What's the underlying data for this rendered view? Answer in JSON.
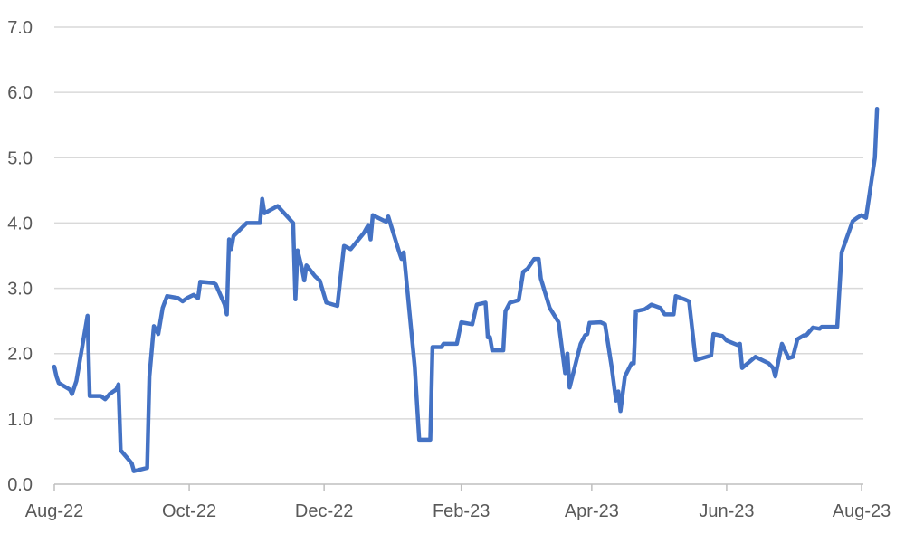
{
  "chart_data": {
    "type": "line",
    "title": "",
    "xlabel": "",
    "ylabel": "",
    "ylim": [
      0,
      7
    ],
    "yticks": [
      "0.0",
      "1.0",
      "2.0",
      "3.0",
      "4.0",
      "5.0",
      "6.0",
      "7.0"
    ],
    "xlim": [
      "2022-08-01",
      "2023-08-01"
    ],
    "xticks": [
      {
        "date": "2022-08-01",
        "label": "Aug-22"
      },
      {
        "date": "2022-10-01",
        "label": "Oct-22"
      },
      {
        "date": "2022-12-01",
        "label": "Dec-22"
      },
      {
        "date": "2023-02-01",
        "label": "Feb-23"
      },
      {
        "date": "2023-04-01",
        "label": "Apr-23"
      },
      {
        "date": "2023-06-01",
        "label": "Jun-23"
      },
      {
        "date": "2023-08-01",
        "label": "Aug-23"
      }
    ],
    "grid": true,
    "legend": "none",
    "series": [
      {
        "color": "#4472c4",
        "points": [
          [
            "2022-08-01",
            1.8
          ],
          [
            "2022-08-02",
            1.65
          ],
          [
            "2022-08-03",
            1.55
          ],
          [
            "2022-08-08",
            1.45
          ],
          [
            "2022-08-09",
            1.38
          ],
          [
            "2022-08-11",
            1.58
          ],
          [
            "2022-08-16",
            2.58
          ],
          [
            "2022-08-17",
            1.35
          ],
          [
            "2022-08-22",
            1.35
          ],
          [
            "2022-08-24",
            1.3
          ],
          [
            "2022-08-26",
            1.38
          ],
          [
            "2022-08-29",
            1.45
          ],
          [
            "2022-08-30",
            1.53
          ],
          [
            "2022-08-31",
            0.52
          ],
          [
            "2022-09-05",
            0.32
          ],
          [
            "2022-09-06",
            0.2
          ],
          [
            "2022-09-12",
            0.25
          ],
          [
            "2022-09-13",
            1.65
          ],
          [
            "2022-09-15",
            2.42
          ],
          [
            "2022-09-17",
            2.3
          ],
          [
            "2022-09-19",
            2.7
          ],
          [
            "2022-09-21",
            2.88
          ],
          [
            "2022-09-26",
            2.85
          ],
          [
            "2022-09-28",
            2.8
          ],
          [
            "2022-09-30",
            2.85
          ],
          [
            "2022-10-03",
            2.9
          ],
          [
            "2022-10-05",
            2.85
          ],
          [
            "2022-10-06",
            3.1
          ],
          [
            "2022-10-12",
            3.08
          ],
          [
            "2022-10-13",
            3.06
          ],
          [
            "2022-10-17",
            2.75
          ],
          [
            "2022-10-18",
            2.6
          ],
          [
            "2022-10-19",
            3.75
          ],
          [
            "2022-10-20",
            3.6
          ],
          [
            "2022-10-21",
            3.8
          ],
          [
            "2022-10-24",
            3.9
          ],
          [
            "2022-10-27",
            4.0
          ],
          [
            "2022-11-02",
            4.0
          ],
          [
            "2022-11-03",
            4.37
          ],
          [
            "2022-11-04",
            4.15
          ],
          [
            "2022-11-10",
            4.26
          ],
          [
            "2022-11-17",
            4.0
          ],
          [
            "2022-11-18",
            2.83
          ],
          [
            "2022-11-19",
            3.58
          ],
          [
            "2022-11-21",
            3.3
          ],
          [
            "2022-11-22",
            3.12
          ],
          [
            "2022-11-23",
            3.35
          ],
          [
            "2022-11-27",
            3.18
          ],
          [
            "2022-11-29",
            3.12
          ],
          [
            "2022-12-02",
            2.78
          ],
          [
            "2022-12-07",
            2.73
          ],
          [
            "2022-12-10",
            3.65
          ],
          [
            "2022-12-13",
            3.6
          ],
          [
            "2022-12-19",
            3.85
          ],
          [
            "2022-12-21",
            3.97
          ],
          [
            "2022-12-22",
            3.75
          ],
          [
            "2022-12-23",
            4.12
          ],
          [
            "2022-12-29",
            4.02
          ],
          [
            "2022-12-30",
            4.1
          ],
          [
            "2023-01-04",
            3.55
          ],
          [
            "2023-01-05",
            3.45
          ],
          [
            "2023-01-06",
            3.55
          ],
          [
            "2023-01-11",
            1.8
          ],
          [
            "2023-01-13",
            0.68
          ],
          [
            "2023-01-18",
            0.68
          ],
          [
            "2023-01-19",
            2.1
          ],
          [
            "2023-01-23",
            2.1
          ],
          [
            "2023-01-24",
            2.15
          ],
          [
            "2023-01-30",
            2.15
          ],
          [
            "2023-02-01",
            2.48
          ],
          [
            "2023-02-06",
            2.45
          ],
          [
            "2023-02-08",
            2.75
          ],
          [
            "2023-02-12",
            2.78
          ],
          [
            "2023-02-13",
            2.25
          ],
          [
            "2023-02-14",
            2.25
          ],
          [
            "2023-02-15",
            2.05
          ],
          [
            "2023-02-20",
            2.05
          ],
          [
            "2023-02-21",
            2.65
          ],
          [
            "2023-02-23",
            2.78
          ],
          [
            "2023-02-27",
            2.82
          ],
          [
            "2023-03-01",
            3.25
          ],
          [
            "2023-03-03",
            3.3
          ],
          [
            "2023-03-06",
            3.45
          ],
          [
            "2023-03-08",
            3.45
          ],
          [
            "2023-03-09",
            3.15
          ],
          [
            "2023-03-13",
            2.7
          ],
          [
            "2023-03-17",
            2.48
          ],
          [
            "2023-03-20",
            1.7
          ],
          [
            "2023-03-21",
            2.0
          ],
          [
            "2023-03-22",
            1.48
          ],
          [
            "2023-03-27",
            2.15
          ],
          [
            "2023-03-29",
            2.28
          ],
          [
            "2023-03-30",
            2.3
          ],
          [
            "2023-03-31",
            2.47
          ],
          [
            "2023-04-05",
            2.48
          ],
          [
            "2023-04-07",
            2.45
          ],
          [
            "2023-04-10",
            1.8
          ],
          [
            "2023-04-12",
            1.28
          ],
          [
            "2023-04-13",
            1.42
          ],
          [
            "2023-04-14",
            1.12
          ],
          [
            "2023-04-16",
            1.65
          ],
          [
            "2023-04-19",
            1.85
          ],
          [
            "2023-04-20",
            1.85
          ],
          [
            "2023-04-21",
            2.65
          ],
          [
            "2023-04-25",
            2.68
          ],
          [
            "2023-04-28",
            2.75
          ],
          [
            "2023-05-02",
            2.7
          ],
          [
            "2023-05-04",
            2.6
          ],
          [
            "2023-05-08",
            2.6
          ],
          [
            "2023-05-09",
            2.88
          ],
          [
            "2023-05-13",
            2.83
          ],
          [
            "2023-05-15",
            2.8
          ],
          [
            "2023-05-18",
            1.9
          ],
          [
            "2023-05-25",
            1.97
          ],
          [
            "2023-05-26",
            2.3
          ],
          [
            "2023-05-30",
            2.27
          ],
          [
            "2023-06-01",
            2.2
          ],
          [
            "2023-06-06",
            2.13
          ],
          [
            "2023-06-07",
            2.15
          ],
          [
            "2023-06-08",
            1.78
          ],
          [
            "2023-06-14",
            1.95
          ],
          [
            "2023-06-20",
            1.85
          ],
          [
            "2023-06-22",
            1.78
          ],
          [
            "2023-06-23",
            1.65
          ],
          [
            "2023-06-26",
            2.15
          ],
          [
            "2023-06-29",
            1.93
          ],
          [
            "2023-07-01",
            1.95
          ],
          [
            "2023-07-03",
            2.22
          ],
          [
            "2023-07-06",
            2.28
          ],
          [
            "2023-07-07",
            2.28
          ],
          [
            "2023-07-10",
            2.4
          ],
          [
            "2023-07-13",
            2.38
          ],
          [
            "2023-07-14",
            2.41
          ],
          [
            "2023-07-21",
            2.41
          ],
          [
            "2023-07-23",
            3.55
          ],
          [
            "2023-07-28",
            4.03
          ],
          [
            "2023-07-30",
            4.08
          ],
          [
            "2023-08-01",
            4.12
          ],
          [
            "2023-08-03",
            4.08
          ],
          [
            "2023-08-07",
            5.0
          ],
          [
            "2023-08-08",
            5.75
          ]
        ]
      }
    ]
  }
}
